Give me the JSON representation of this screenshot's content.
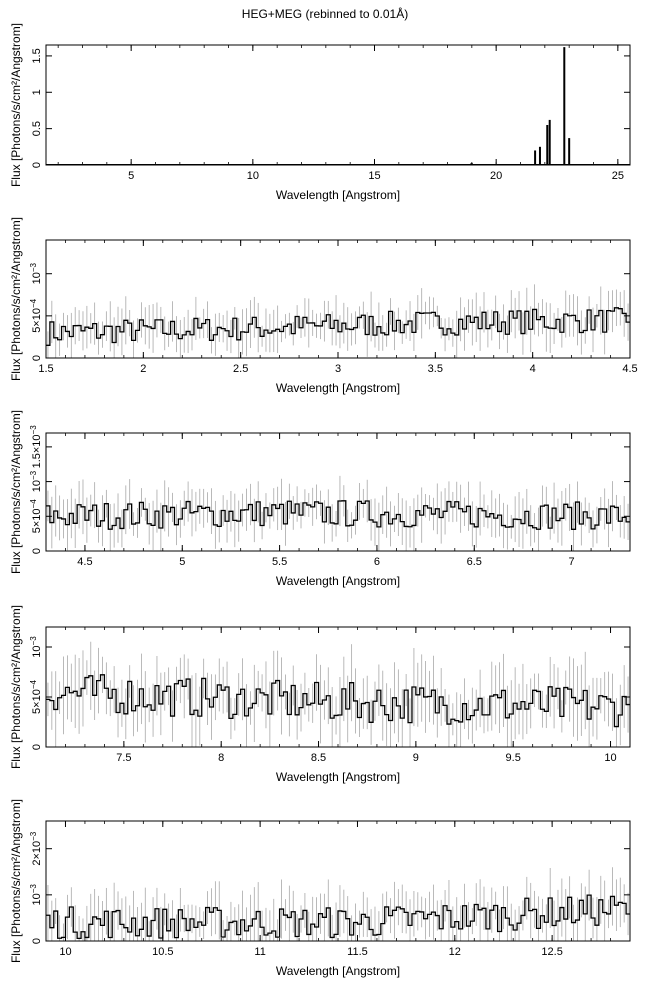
{
  "title": "HEG+MEG (rebinned to 0.01Å)",
  "colors": {
    "data_line": "#000000",
    "error_bar": "#a8a8a8",
    "axes": "#000000"
  },
  "chart_data": [
    {
      "type": "line",
      "style": "step-histogram",
      "xlabel": "Wavelength [Angstrom]",
      "ylabel": "Flux [Photons/s/cm²/Angstrom]",
      "xlim": [
        1.5,
        25.5
      ],
      "ylim": [
        0,
        1.65
      ],
      "x_ticks": [
        {
          "value": 5,
          "label": "5"
        },
        {
          "value": 10,
          "label": "10"
        },
        {
          "value": 15,
          "label": "15"
        },
        {
          "value": 20,
          "label": "20"
        },
        {
          "value": 25,
          "label": "25"
        }
      ],
      "y_ticks": [
        {
          "value": 0,
          "label": "0"
        },
        {
          "value": 0.5,
          "label": "0.5"
        },
        {
          "value": 1,
          "label": "1"
        },
        {
          "value": 1.5,
          "label": "1.5"
        }
      ],
      "lines": [
        {
          "x": 21.6,
          "y": 0.2
        },
        {
          "x": 21.8,
          "y": 0.25
        },
        {
          "x": 22.1,
          "y": 0.55
        },
        {
          "x": 22.2,
          "y": 0.62
        },
        {
          "x": 22.8,
          "y": 1.62
        },
        {
          "x": 23.0,
          "y": 0.37
        },
        {
          "x": 19.0,
          "y": 0.025
        },
        {
          "x": 18.97,
          "y": 0.02
        },
        {
          "x": 16.0,
          "y": 0.01
        }
      ],
      "continuum": 0.005,
      "error_bars": false
    },
    {
      "type": "line",
      "style": "step-histogram",
      "xlabel": "Wavelength [Angstrom]",
      "ylabel": "Flux [Photons/s/cm²/Angstrom]",
      "xlim": [
        1.5,
        4.5
      ],
      "ylim": [
        0,
        0.0014
      ],
      "x_ticks": [
        {
          "value": 1.5,
          "label": "1.5"
        },
        {
          "value": 2,
          "label": "2"
        },
        {
          "value": 2.5,
          "label": "2.5"
        },
        {
          "value": 3,
          "label": "3"
        },
        {
          "value": 3.5,
          "label": "3.5"
        },
        {
          "value": 4,
          "label": "4"
        },
        {
          "value": 4.5,
          "label": "4.5"
        }
      ],
      "y_ticks": [
        {
          "value": 0,
          "label": "0",
          "sup": ""
        },
        {
          "value": 0.0005,
          "label": "5×10",
          "sup": "−4"
        },
        {
          "value": 0.001,
          "label": "10",
          "sup": "−3"
        }
      ],
      "trend": [
        [
          1.5,
          0.0003
        ],
        [
          2.5,
          0.00035
        ],
        [
          3.5,
          0.00042
        ],
        [
          4.5,
          0.00045
        ]
      ],
      "noise": 0.00015,
      "error_bars": true
    },
    {
      "type": "line",
      "style": "step-histogram",
      "xlabel": "Wavelength [Angstrom]",
      "ylabel": "Flux [Photons/s/cm²/Angstrom]",
      "xlim": [
        4.3,
        7.3
      ],
      "ylim": [
        0,
        0.0017
      ],
      "x_ticks": [
        {
          "value": 4.5,
          "label": "4.5"
        },
        {
          "value": 5,
          "label": "5"
        },
        {
          "value": 5.5,
          "label": "5.5"
        },
        {
          "value": 6,
          "label": "6"
        },
        {
          "value": 6.5,
          "label": "6.5"
        },
        {
          "value": 7,
          "label": "7"
        }
      ],
      "y_ticks": [
        {
          "value": 0,
          "label": "0",
          "sup": ""
        },
        {
          "value": 0.0005,
          "label": "5×10",
          "sup": "−4"
        },
        {
          "value": 0.001,
          "label": "10",
          "sup": "−3"
        },
        {
          "value": 0.0015,
          "label": "1.5×10",
          "sup": "−3"
        }
      ],
      "trend": [
        [
          4.3,
          0.0005
        ],
        [
          5.5,
          0.00055
        ],
        [
          7.3,
          0.0005
        ]
      ],
      "noise": 0.0002,
      "error_bars": true
    },
    {
      "type": "line",
      "style": "step-histogram",
      "xlabel": "Wavelength [Angstrom]",
      "ylabel": "Flux [Photons/s/cm²/Angstrom]",
      "xlim": [
        7.1,
        10.1
      ],
      "ylim": [
        0,
        0.0012
      ],
      "x_ticks": [
        {
          "value": 7.5,
          "label": "7.5"
        },
        {
          "value": 8,
          "label": "8"
        },
        {
          "value": 8.5,
          "label": "8.5"
        },
        {
          "value": 9,
          "label": "9"
        },
        {
          "value": 9.5,
          "label": "9.5"
        },
        {
          "value": 10,
          "label": "10"
        }
      ],
      "y_ticks": [
        {
          "value": 0,
          "label": "0",
          "sup": ""
        },
        {
          "value": 0.0005,
          "label": "5×10",
          "sup": "−4"
        },
        {
          "value": 0.001,
          "label": "10",
          "sup": "−3"
        }
      ],
      "trend": [
        [
          7.1,
          0.00055
        ],
        [
          8.5,
          0.00045
        ],
        [
          10.1,
          0.0004
        ]
      ],
      "noise": 0.0002,
      "error_bars": true
    },
    {
      "type": "line",
      "style": "step-histogram",
      "xlabel": "Wavelength [Angstrom]",
      "ylabel": "Flux [Photons/s/cm²/Angstrom]",
      "xlim": [
        9.9,
        12.9
      ],
      "ylim": [
        0,
        0.0026
      ],
      "x_ticks": [
        {
          "value": 10,
          "label": "10"
        },
        {
          "value": 10.5,
          "label": "10.5"
        },
        {
          "value": 11,
          "label": "11"
        },
        {
          "value": 11.5,
          "label": "11.5"
        },
        {
          "value": 12,
          "label": "12"
        },
        {
          "value": 12.5,
          "label": "12.5"
        }
      ],
      "y_ticks": [
        {
          "value": 0,
          "label": "0",
          "sup": ""
        },
        {
          "value": 0.001,
          "label": "10",
          "sup": "−3"
        },
        {
          "value": 0.002,
          "label": "2×10",
          "sup": "−3"
        }
      ],
      "trend": [
        [
          9.9,
          0.0004
        ],
        [
          11.5,
          0.0004
        ],
        [
          12.9,
          0.0007
        ]
      ],
      "noise": 0.00035,
      "error_bars": true
    }
  ]
}
